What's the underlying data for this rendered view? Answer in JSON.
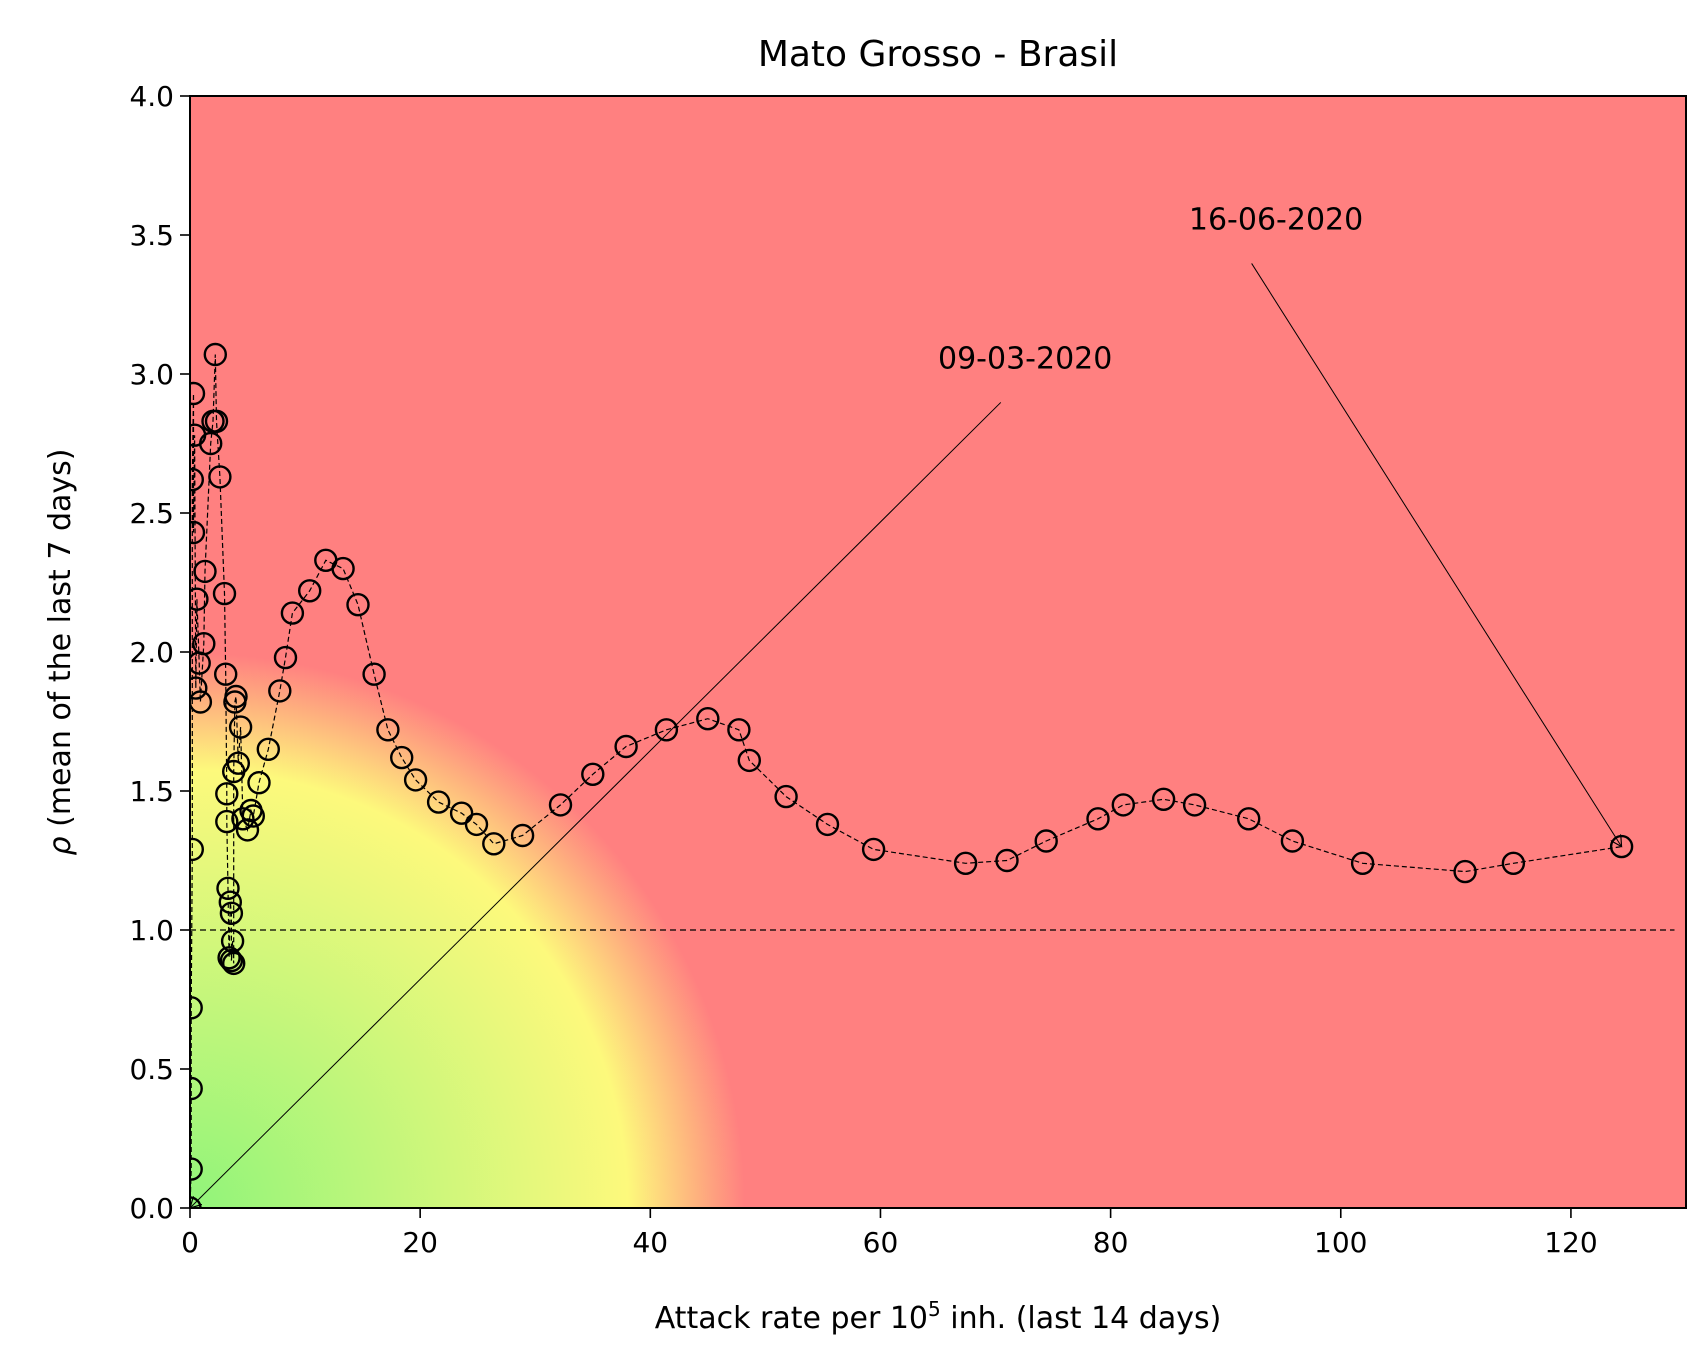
{
  "chart_data": {
    "type": "scatter",
    "title": "Mato Grosso - Brasil",
    "xlabel": {
      "prefix": "Attack rate per 10",
      "sup": "5",
      "suffix": " inh. (last 14 days)"
    },
    "ylabel": {
      "symbol": "ρ",
      "text": " (mean of the last 7 days)"
    },
    "xlim": [
      0,
      130
    ],
    "ylim": [
      0,
      4
    ],
    "xticks": [
      0,
      20,
      40,
      60,
      80,
      100,
      120
    ],
    "yticks": [
      0.0,
      0.5,
      1.0,
      1.5,
      2.0,
      2.5,
      3.0,
      3.5,
      4.0
    ],
    "background": "risk gradient: green near origin, yellow band, red outside",
    "colors": {
      "green": "#90f47a",
      "yellow": "#fdf97c",
      "red": "#ff8080",
      "marker_edge": "#000000"
    },
    "reference_line": {
      "y": 1.0,
      "style": "dashed"
    },
    "series": [
      {
        "style": "open-circle markers joined by dashed line",
        "points": [
          [
            0.0,
            0.0
          ],
          [
            0.1,
            0.14
          ],
          [
            0.1,
            0.43
          ],
          [
            0.1,
            0.72
          ],
          [
            0.2,
            1.29
          ],
          [
            0.2,
            2.62
          ],
          [
            0.3,
            2.93
          ],
          [
            0.3,
            2.43
          ],
          [
            0.4,
            2.78
          ],
          [
            0.5,
            1.87
          ],
          [
            0.6,
            2.19
          ],
          [
            0.8,
            1.96
          ],
          [
            0.9,
            1.82
          ],
          [
            1.2,
            2.03
          ],
          [
            1.3,
            2.29
          ],
          [
            1.8,
            2.75
          ],
          [
            2.0,
            2.83
          ],
          [
            2.2,
            3.07
          ],
          [
            2.3,
            2.83
          ],
          [
            2.6,
            2.63
          ],
          [
            3.0,
            2.21
          ],
          [
            3.1,
            1.92
          ],
          [
            3.2,
            1.49
          ],
          [
            3.2,
            1.39
          ],
          [
            3.3,
            1.15
          ],
          [
            3.4,
            0.9
          ],
          [
            3.5,
            1.1
          ],
          [
            3.6,
            1.06
          ],
          [
            3.6,
            0.89
          ],
          [
            3.7,
            0.96
          ],
          [
            3.8,
            0.88
          ],
          [
            3.8,
            1.57
          ],
          [
            3.9,
            1.82
          ],
          [
            4.0,
            1.84
          ],
          [
            4.2,
            1.6
          ],
          [
            4.4,
            1.73
          ],
          [
            4.6,
            1.4
          ],
          [
            5.0,
            1.36
          ],
          [
            5.3,
            1.43
          ],
          [
            5.5,
            1.41
          ],
          [
            6.0,
            1.53
          ],
          [
            6.8,
            1.65
          ],
          [
            7.8,
            1.86
          ],
          [
            8.3,
            1.98
          ],
          [
            8.9,
            2.14
          ],
          [
            10.4,
            2.22
          ],
          [
            11.8,
            2.33
          ],
          [
            13.3,
            2.3
          ],
          [
            14.6,
            2.17
          ],
          [
            16.0,
            1.92
          ],
          [
            17.2,
            1.72
          ],
          [
            18.4,
            1.62
          ],
          [
            19.6,
            1.54
          ],
          [
            21.6,
            1.46
          ],
          [
            23.6,
            1.42
          ],
          [
            24.9,
            1.38
          ],
          [
            26.4,
            1.31
          ],
          [
            28.9,
            1.34
          ],
          [
            32.2,
            1.45
          ],
          [
            35.0,
            1.56
          ],
          [
            37.9,
            1.66
          ],
          [
            41.4,
            1.72
          ],
          [
            45.0,
            1.76
          ],
          [
            47.7,
            1.72
          ],
          [
            48.6,
            1.61
          ],
          [
            51.8,
            1.48
          ],
          [
            55.4,
            1.38
          ],
          [
            59.4,
            1.29
          ],
          [
            67.4,
            1.24
          ],
          [
            71.0,
            1.25
          ],
          [
            74.4,
            1.32
          ],
          [
            78.9,
            1.4
          ],
          [
            81.1,
            1.45
          ],
          [
            84.6,
            1.47
          ],
          [
            87.3,
            1.45
          ],
          [
            92.0,
            1.4
          ],
          [
            95.8,
            1.32
          ],
          [
            101.9,
            1.24
          ],
          [
            110.8,
            1.21
          ],
          [
            115.0,
            1.24
          ],
          [
            124.4,
            1.3
          ]
        ]
      }
    ],
    "annotations": [
      {
        "text": "09-03-2020",
        "text_x": 65.0,
        "text_y": 3.02,
        "target_x": 0.0,
        "target_y": 0.0
      },
      {
        "text": "16-06-2020",
        "text_x": 86.8,
        "text_y": 3.52,
        "target_x": 124.4,
        "target_y": 1.3
      }
    ]
  }
}
